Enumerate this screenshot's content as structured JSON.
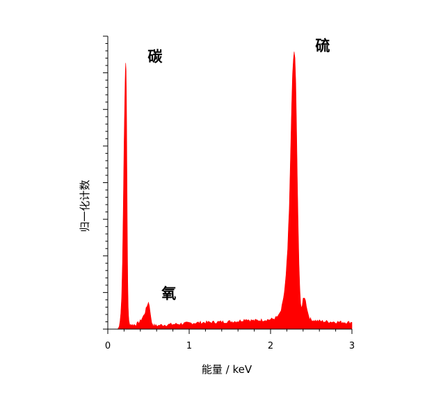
{
  "chart_data": {
    "type": "area",
    "title": "",
    "xlabel": "能量 / keV",
    "ylabel": "归一化计数",
    "xlim": [
      0,
      3
    ],
    "ylim": [
      0,
      1.1
    ],
    "xticks": [
      "0",
      "1",
      "2",
      "3"
    ],
    "grid": false,
    "legend": "none",
    "fill_color": "#ff0000",
    "series": [
      {
        "x": [
          0.12,
          0.13,
          0.14,
          0.15,
          0.16,
          0.17,
          0.18,
          0.19,
          0.2,
          0.21,
          0.215,
          0.22,
          0.225,
          0.23,
          0.235,
          0.24,
          0.245,
          0.25,
          0.255,
          0.26,
          0.27,
          0.28,
          0.29,
          0.3,
          0.32,
          0.34,
          0.36,
          0.38,
          0.4,
          0.42,
          0.44,
          0.46,
          0.48,
          0.49,
          0.5,
          0.51,
          0.52,
          0.53,
          0.54,
          0.56,
          0.58,
          0.6,
          0.65,
          0.7,
          0.8,
          0.9,
          1.0,
          1.1,
          1.2,
          1.3,
          1.4,
          1.5,
          1.6,
          1.65,
          1.7,
          1.75,
          1.8,
          1.9,
          2.0,
          2.05,
          2.1,
          2.13,
          2.15,
          2.17,
          2.19,
          2.21,
          2.23,
          2.24,
          2.25,
          2.26,
          2.27,
          2.28,
          2.29,
          2.3,
          2.31,
          2.32,
          2.33,
          2.34,
          2.35,
          2.36,
          2.37,
          2.38,
          2.39,
          2.4,
          2.42,
          2.44,
          2.46,
          2.48,
          2.5,
          2.55,
          2.6,
          2.7,
          2.8,
          2.9,
          3.0
        ],
        "y": [
          0.0,
          0.004,
          0.01,
          0.03,
          0.06,
          0.12,
          0.25,
          0.45,
          0.7,
          0.9,
          0.97,
          1.0,
          0.97,
          0.85,
          0.6,
          0.35,
          0.18,
          0.09,
          0.05,
          0.03,
          0.02,
          0.018,
          0.016,
          0.016,
          0.016,
          0.017,
          0.02,
          0.025,
          0.03,
          0.04,
          0.05,
          0.065,
          0.085,
          0.095,
          0.1,
          0.09,
          0.07,
          0.04,
          0.025,
          0.015,
          0.013,
          0.013,
          0.015,
          0.016,
          0.018,
          0.02,
          0.022,
          0.024,
          0.025,
          0.026,
          0.027,
          0.028,
          0.03,
          0.033,
          0.038,
          0.033,
          0.032,
          0.034,
          0.036,
          0.04,
          0.05,
          0.07,
          0.1,
          0.14,
          0.2,
          0.3,
          0.45,
          0.58,
          0.72,
          0.85,
          0.95,
          1.01,
          1.04,
          1.02,
          0.92,
          0.75,
          0.55,
          0.38,
          0.24,
          0.15,
          0.1,
          0.08,
          0.09,
          0.11,
          0.12,
          0.09,
          0.06,
          0.04,
          0.035,
          0.032,
          0.03,
          0.028,
          0.027,
          0.026,
          0.025
        ]
      }
    ],
    "annotations": [
      {
        "text": "碳",
        "x": 0.58,
        "y": 1.0
      },
      {
        "text": "氧",
        "x": 0.75,
        "y": 0.11
      },
      {
        "text": "硫",
        "x": 2.64,
        "y": 1.04
      }
    ]
  }
}
